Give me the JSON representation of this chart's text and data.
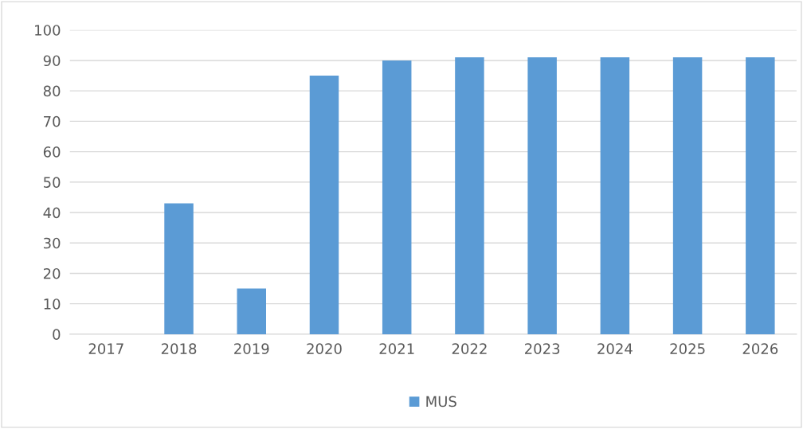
{
  "chart_data": {
    "type": "bar",
    "categories": [
      "2017",
      "2018",
      "2019",
      "2020",
      "2021",
      "2022",
      "2023",
      "2024",
      "2025",
      "2026"
    ],
    "series": [
      {
        "name": "MUS",
        "color": "#5b9bd5",
        "values": [
          0,
          43,
          15,
          85,
          90,
          91,
          91,
          91,
          91,
          91
        ]
      }
    ],
    "ylim": [
      0,
      100
    ],
    "yticks": [
      0,
      10,
      20,
      30,
      40,
      50,
      60,
      70,
      80,
      90,
      100
    ],
    "grid": "y",
    "legend": "bottom"
  }
}
